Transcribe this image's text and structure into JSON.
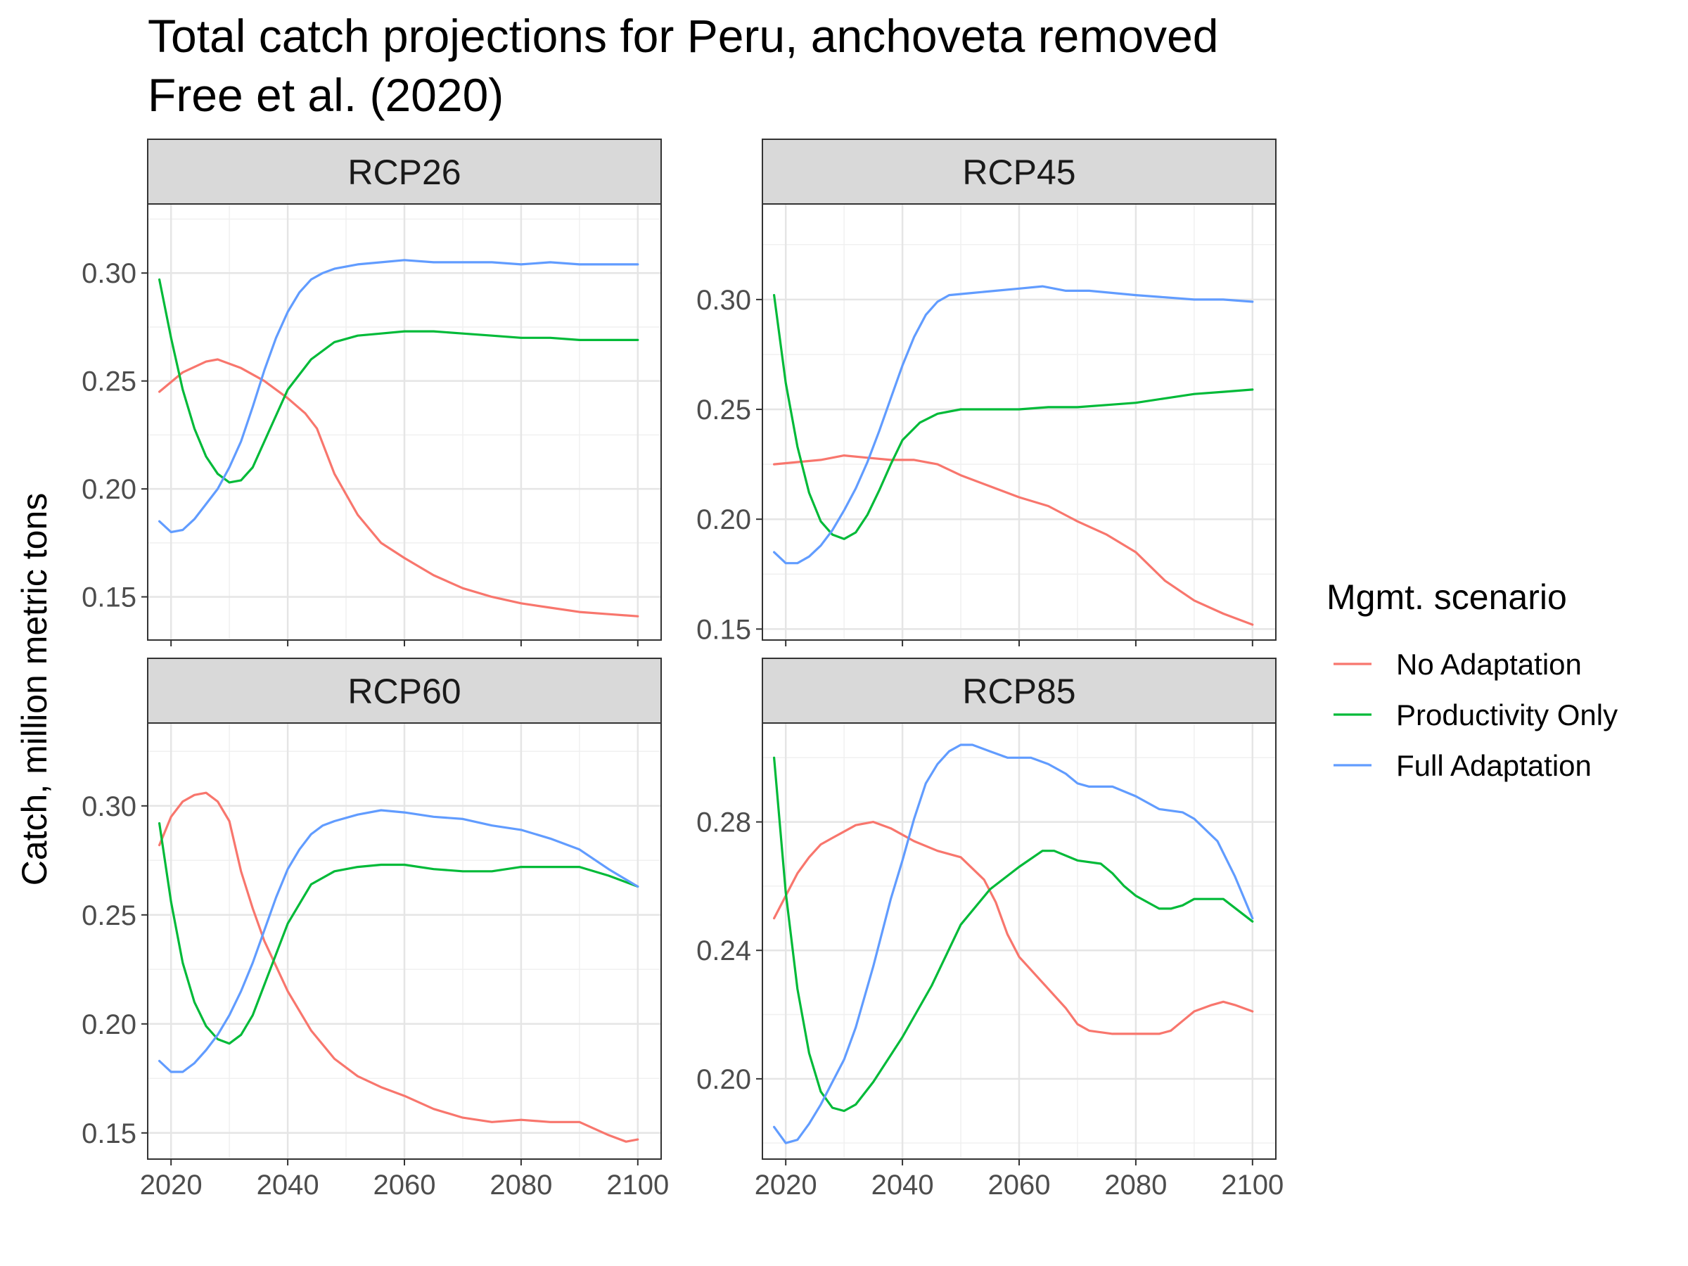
{
  "chart_data": {
    "type": "line",
    "title": "Total catch projections for Peru, anchoveta removed",
    "subtitle": "Free et al. (2020)",
    "xlabel": "",
    "ylabel": "Catch, million metric tons",
    "legend": {
      "title": "Mgmt. scenario",
      "position": "right",
      "entries": [
        {
          "name": "No Adaptation",
          "color": "#F8766D"
        },
        {
          "name": "Productivity Only",
          "color": "#00BA38"
        },
        {
          "name": "Full Adaptation",
          "color": "#619CFF"
        }
      ]
    },
    "grid": true,
    "x_ticks": [
      2020,
      2040,
      2060,
      2080,
      2100
    ],
    "xlim": [
      2016,
      2104
    ],
    "panels": [
      {
        "label": "RCP26",
        "ylim": [
          0.13,
          0.332
        ],
        "y_ticks": [
          0.15,
          0.2,
          0.25,
          0.3
        ],
        "y_tick_labels": [
          "0.15",
          "0.20",
          "0.25",
          "0.30"
        ],
        "series": [
          {
            "name": "No Adaptation",
            "x": [
              2018,
              2022,
              2026,
              2028,
              2032,
              2036,
              2040,
              2043,
              2045,
              2048,
              2052,
              2056,
              2060,
              2065,
              2070,
              2075,
              2080,
              2085,
              2090,
              2095,
              2100
            ],
            "y": [
              0.245,
              0.254,
              0.259,
              0.26,
              0.256,
              0.25,
              0.242,
              0.235,
              0.228,
              0.207,
              0.188,
              0.175,
              0.168,
              0.16,
              0.154,
              0.15,
              0.147,
              0.145,
              0.143,
              0.142,
              0.141
            ]
          },
          {
            "name": "Productivity Only",
            "x": [
              2018,
              2020,
              2022,
              2024,
              2026,
              2028,
              2030,
              2032,
              2034,
              2036,
              2040,
              2044,
              2048,
              2052,
              2056,
              2060,
              2065,
              2070,
              2075,
              2080,
              2085,
              2090,
              2095,
              2100
            ],
            "y": [
              0.297,
              0.27,
              0.246,
              0.228,
              0.215,
              0.207,
              0.203,
              0.204,
              0.21,
              0.222,
              0.246,
              0.26,
              0.268,
              0.271,
              0.272,
              0.273,
              0.273,
              0.272,
              0.271,
              0.27,
              0.27,
              0.269,
              0.269,
              0.269
            ]
          },
          {
            "name": "Full Adaptation",
            "x": [
              2018,
              2020,
              2022,
              2024,
              2026,
              2028,
              2030,
              2032,
              2034,
              2036,
              2038,
              2040,
              2042,
              2044,
              2046,
              2048,
              2052,
              2056,
              2060,
              2065,
              2070,
              2075,
              2080,
              2085,
              2090,
              2095,
              2100
            ],
            "y": [
              0.185,
              0.18,
              0.181,
              0.186,
              0.193,
              0.2,
              0.21,
              0.222,
              0.238,
              0.255,
              0.27,
              0.282,
              0.291,
              0.297,
              0.3,
              0.302,
              0.304,
              0.305,
              0.306,
              0.305,
              0.305,
              0.305,
              0.304,
              0.305,
              0.304,
              0.304,
              0.304
            ]
          }
        ]
      },
      {
        "label": "RCP45",
        "ylim": [
          0.145,
          0.3435
        ],
        "y_ticks": [
          0.15,
          0.2,
          0.25,
          0.3
        ],
        "y_tick_labels": [
          "0.15",
          "0.20",
          "0.25",
          "0.30"
        ],
        "series": [
          {
            "name": "No Adaptation",
            "x": [
              2018,
              2022,
              2026,
              2030,
              2034,
              2038,
              2042,
              2046,
              2050,
              2055,
              2060,
              2065,
              2070,
              2075,
              2080,
              2085,
              2090,
              2095,
              2100
            ],
            "y": [
              0.225,
              0.226,
              0.227,
              0.229,
              0.228,
              0.227,
              0.227,
              0.225,
              0.22,
              0.215,
              0.21,
              0.206,
              0.199,
              0.193,
              0.185,
              0.172,
              0.163,
              0.157,
              0.152
            ]
          },
          {
            "name": "Productivity Only",
            "x": [
              2018,
              2020,
              2022,
              2024,
              2026,
              2028,
              2030,
              2032,
              2034,
              2036,
              2038,
              2040,
              2043,
              2046,
              2050,
              2055,
              2060,
              2065,
              2070,
              2075,
              2080,
              2085,
              2090,
              2095,
              2100
            ],
            "y": [
              0.302,
              0.262,
              0.233,
              0.212,
              0.199,
              0.193,
              0.191,
              0.194,
              0.202,
              0.213,
              0.225,
              0.236,
              0.244,
              0.248,
              0.25,
              0.25,
              0.25,
              0.251,
              0.251,
              0.252,
              0.253,
              0.255,
              0.257,
              0.258,
              0.259
            ]
          },
          {
            "name": "Full Adaptation",
            "x": [
              2018,
              2020,
              2022,
              2024,
              2026,
              2028,
              2030,
              2032,
              2034,
              2036,
              2038,
              2040,
              2042,
              2044,
              2046,
              2048,
              2052,
              2056,
              2060,
              2064,
              2068,
              2072,
              2076,
              2080,
              2085,
              2090,
              2095,
              2100
            ],
            "y": [
              0.185,
              0.18,
              0.18,
              0.183,
              0.188,
              0.195,
              0.204,
              0.214,
              0.226,
              0.24,
              0.255,
              0.27,
              0.283,
              0.293,
              0.299,
              0.302,
              0.303,
              0.304,
              0.305,
              0.306,
              0.304,
              0.304,
              0.303,
              0.302,
              0.301,
              0.3,
              0.3,
              0.299
            ]
          }
        ]
      },
      {
        "label": "RCP60",
        "ylim": [
          0.138,
          0.338
        ],
        "y_ticks": [
          0.15,
          0.2,
          0.25,
          0.3
        ],
        "y_tick_labels": [
          "0.15",
          "0.20",
          "0.25",
          "0.30"
        ],
        "series": [
          {
            "name": "No Adaptation",
            "x": [
              2018,
              2020,
              2022,
              2024,
              2026,
              2028,
              2030,
              2032,
              2034,
              2036,
              2040,
              2044,
              2048,
              2052,
              2056,
              2060,
              2065,
              2070,
              2075,
              2080,
              2085,
              2090,
              2095,
              2098,
              2100
            ],
            "y": [
              0.282,
              0.295,
              0.302,
              0.305,
              0.306,
              0.302,
              0.293,
              0.27,
              0.253,
              0.238,
              0.215,
              0.197,
              0.184,
              0.176,
              0.171,
              0.167,
              0.161,
              0.157,
              0.155,
              0.156,
              0.155,
              0.155,
              0.149,
              0.146,
              0.147
            ]
          },
          {
            "name": "Productivity Only",
            "x": [
              2018,
              2020,
              2022,
              2024,
              2026,
              2028,
              2030,
              2032,
              2034,
              2036,
              2038,
              2040,
              2044,
              2048,
              2052,
              2056,
              2060,
              2065,
              2070,
              2075,
              2080,
              2085,
              2090,
              2095,
              2100
            ],
            "y": [
              0.292,
              0.256,
              0.228,
              0.21,
              0.199,
              0.193,
              0.191,
              0.195,
              0.204,
              0.218,
              0.232,
              0.246,
              0.264,
              0.27,
              0.272,
              0.273,
              0.273,
              0.271,
              0.27,
              0.27,
              0.272,
              0.272,
              0.272,
              0.268,
              0.263
            ]
          },
          {
            "name": "Full Adaptation",
            "x": [
              2018,
              2020,
              2022,
              2024,
              2026,
              2028,
              2030,
              2032,
              2034,
              2036,
              2038,
              2040,
              2042,
              2044,
              2046,
              2048,
              2052,
              2056,
              2060,
              2065,
              2070,
              2075,
              2080,
              2085,
              2090,
              2095,
              2100
            ],
            "y": [
              0.183,
              0.178,
              0.178,
              0.182,
              0.188,
              0.195,
              0.204,
              0.215,
              0.228,
              0.243,
              0.258,
              0.271,
              0.28,
              0.287,
              0.291,
              0.293,
              0.296,
              0.298,
              0.297,
              0.295,
              0.294,
              0.291,
              0.289,
              0.285,
              0.28,
              0.271,
              0.263
            ]
          }
        ]
      },
      {
        "label": "RCP85",
        "ylim": [
          0.175,
          0.3108
        ],
        "y_ticks": [
          0.2,
          0.24,
          0.28
        ],
        "y_tick_labels": [
          "0.20",
          "0.24",
          "0.28"
        ],
        "series": [
          {
            "name": "No Adaptation",
            "x": [
              2018,
              2020,
              2022,
              2024,
              2026,
              2028,
              2030,
              2032,
              2035,
              2038,
              2042,
              2046,
              2050,
              2054,
              2056,
              2058,
              2060,
              2064,
              2068,
              2070,
              2072,
              2076,
              2080,
              2084,
              2086,
              2088,
              2090,
              2093,
              2095,
              2097,
              2100
            ],
            "y": [
              0.25,
              0.257,
              0.264,
              0.269,
              0.273,
              0.275,
              0.277,
              0.279,
              0.28,
              0.278,
              0.274,
              0.271,
              0.269,
              0.262,
              0.255,
              0.245,
              0.238,
              0.23,
              0.222,
              0.217,
              0.215,
              0.214,
              0.214,
              0.214,
              0.215,
              0.218,
              0.221,
              0.223,
              0.224,
              0.223,
              0.221
            ]
          },
          {
            "name": "Productivity Only",
            "x": [
              2018,
              2020,
              2022,
              2024,
              2026,
              2028,
              2030,
              2032,
              2035,
              2040,
              2045,
              2050,
              2055,
              2060,
              2064,
              2066,
              2070,
              2074,
              2076,
              2078,
              2080,
              2084,
              2086,
              2088,
              2090,
              2095,
              2100
            ],
            "y": [
              0.3,
              0.258,
              0.228,
              0.208,
              0.196,
              0.191,
              0.19,
              0.192,
              0.199,
              0.213,
              0.229,
              0.248,
              0.259,
              0.266,
              0.271,
              0.271,
              0.268,
              0.267,
              0.264,
              0.26,
              0.257,
              0.253,
              0.253,
              0.254,
              0.256,
              0.256,
              0.249
            ]
          },
          {
            "name": "Full Adaptation",
            "x": [
              2018,
              2020,
              2022,
              2024,
              2026,
              2028,
              2030,
              2032,
              2035,
              2038,
              2040,
              2042,
              2044,
              2046,
              2048,
              2050,
              2052,
              2055,
              2058,
              2062,
              2065,
              2068,
              2070,
              2072,
              2076,
              2080,
              2084,
              2088,
              2090,
              2094,
              2097,
              2100
            ],
            "y": [
              0.185,
              0.18,
              0.181,
              0.186,
              0.192,
              0.199,
              0.206,
              0.216,
              0.235,
              0.256,
              0.268,
              0.281,
              0.292,
              0.298,
              0.302,
              0.304,
              0.304,
              0.302,
              0.3,
              0.3,
              0.298,
              0.295,
              0.292,
              0.291,
              0.291,
              0.288,
              0.284,
              0.283,
              0.281,
              0.274,
              0.263,
              0.25
            ]
          }
        ]
      }
    ]
  }
}
